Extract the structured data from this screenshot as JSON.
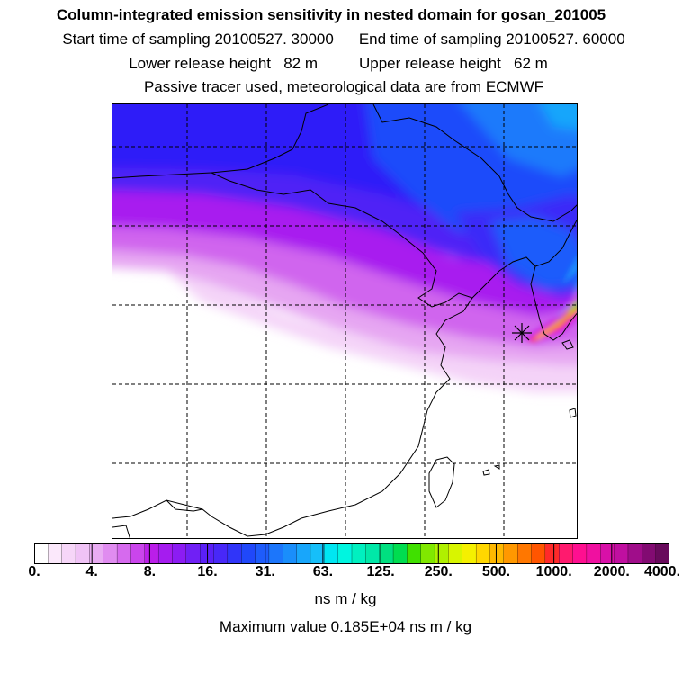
{
  "title": "Column-integrated emission sensitivity in nested domain for gosan_201005",
  "sampling": {
    "start": "Start time of sampling 20100527. 30000",
    "end": "End time of sampling 20100527. 60000"
  },
  "release": {
    "lower": "Lower release height   82 m",
    "upper": "Upper release height   62 m"
  },
  "tracer_note": "Passive tracer used, meteorological data are from ECMWF",
  "colorbar": {
    "labels": [
      "0.",
      "4.",
      "8.",
      "16.",
      "31.",
      "63.",
      "125.",
      "250.",
      "500.",
      "1000.",
      "2000.",
      "4000."
    ],
    "units": "ns m / kg",
    "colors": [
      "#ffffff",
      "#fbe8fb",
      "#f6d6f8",
      "#f0c3f6",
      "#e9acf3",
      "#e08cf0",
      "#d66aee",
      "#ca45ec",
      "#bb1ee9",
      "#a51cef",
      "#8c1cf3",
      "#7020f5",
      "#5a20f7",
      "#4828f8",
      "#3035f9",
      "#2048fa",
      "#1e5cfb",
      "#1c76fb",
      "#1a8efb",
      "#18a6fb",
      "#16bff9",
      "#00e6f2",
      "#00f5e0",
      "#00f0c0",
      "#00e8a8",
      "#00e080",
      "#00dd50",
      "#40e000",
      "#80e800",
      "#b0f000",
      "#d8f500",
      "#f5f000",
      "#ffd700",
      "#ffb800",
      "#ff9800",
      "#ff7700",
      "#ff5500",
      "#ff2a2a",
      "#ff1a6e",
      "#ff0f90",
      "#f010a0",
      "#d810a8",
      "#c00fa0",
      "#a00d8a",
      "#820b72",
      "#680a5c"
    ]
  },
  "max_value_text": "Maximum value  0.185E+04 ns m / kg",
  "map": {
    "receptor": "Gosan station marker",
    "grid": "dashed lat/lon lines",
    "coastline": "East Asia coastline, Korea, Taiwan"
  }
}
